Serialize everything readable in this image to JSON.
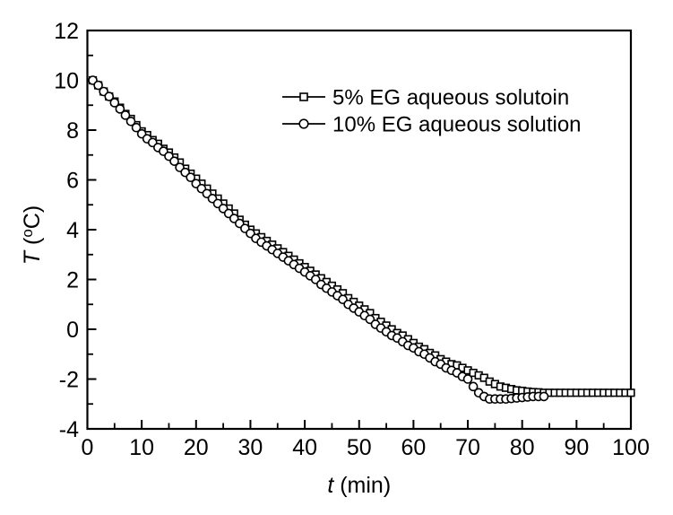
{
  "chart_data": {
    "type": "line",
    "xlabel": {
      "italic": "t",
      "rest": " (min)"
    },
    "ylabel": {
      "italic": "T",
      "pre": " (",
      "sup": "o",
      "post": "C)"
    },
    "xlim": [
      0,
      100
    ],
    "ylim": [
      -4,
      12
    ],
    "x_major_ticks": [
      0,
      10,
      20,
      30,
      40,
      50,
      60,
      70,
      80,
      90,
      100
    ],
    "x_minor_ticks": [
      5,
      15,
      25,
      35,
      45,
      55,
      65,
      75,
      85,
      95
    ],
    "y_major_ticks": [
      -4,
      -2,
      0,
      2,
      4,
      6,
      8,
      10,
      12
    ],
    "y_minor_ticks": [
      -3,
      -1,
      1,
      3,
      5,
      7,
      9,
      11
    ],
    "grid": false,
    "background_color": "#ffffff",
    "line_color": "#000000",
    "marker_fill": "#ffffff",
    "legend": {
      "position": "upper-right-inside",
      "entries": [
        {
          "label": "5% EG aqueous solutoin",
          "marker": "square"
        },
        {
          "label": "10% EG aqueous solution",
          "marker": "circle"
        }
      ]
    },
    "series": [
      {
        "name": "5% EG aqueous solutoin",
        "marker": "square",
        "points": [
          [
            1,
            10
          ],
          [
            2,
            9.8
          ],
          [
            3,
            9.55
          ],
          [
            4,
            9.35
          ],
          [
            5,
            9.15
          ],
          [
            6,
            8.9
          ],
          [
            7,
            8.65
          ],
          [
            8,
            8.45
          ],
          [
            9,
            8.2
          ],
          [
            10,
            7.95
          ],
          [
            11,
            7.8
          ],
          [
            12,
            7.6
          ],
          [
            13,
            7.45
          ],
          [
            14,
            7.25
          ],
          [
            15,
            7.1
          ],
          [
            16,
            6.9
          ],
          [
            17,
            6.7
          ],
          [
            18,
            6.45
          ],
          [
            19,
            6.25
          ],
          [
            20,
            6.05
          ],
          [
            21,
            5.85
          ],
          [
            22,
            5.65
          ],
          [
            23,
            5.45
          ],
          [
            24,
            5.25
          ],
          [
            25,
            5.05
          ],
          [
            26,
            4.85
          ],
          [
            27,
            4.65
          ],
          [
            28,
            4.4
          ],
          [
            29,
            4.2
          ],
          [
            30,
            4
          ],
          [
            31,
            3.85
          ],
          [
            32,
            3.7
          ],
          [
            33,
            3.55
          ],
          [
            34,
            3.4
          ],
          [
            35,
            3.25
          ],
          [
            36,
            3.1
          ],
          [
            37,
            2.95
          ],
          [
            38,
            2.8
          ],
          [
            39,
            2.65
          ],
          [
            40,
            2.5
          ],
          [
            41,
            2.35
          ],
          [
            42,
            2.2
          ],
          [
            43,
            2.05
          ],
          [
            44,
            1.9
          ],
          [
            45,
            1.75
          ],
          [
            46,
            1.6
          ],
          [
            47,
            1.45
          ],
          [
            48,
            1.25
          ],
          [
            49,
            1.1
          ],
          [
            50,
            0.95
          ],
          [
            51,
            0.8
          ],
          [
            52,
            0.65
          ],
          [
            53,
            0.45
          ],
          [
            54,
            0.3
          ],
          [
            55,
            0.15
          ],
          [
            56,
            0
          ],
          [
            57,
            -0.15
          ],
          [
            58,
            -0.25
          ],
          [
            59,
            -0.4
          ],
          [
            60,
            -0.55
          ],
          [
            61,
            -0.7
          ],
          [
            62,
            -0.8
          ],
          [
            63,
            -0.95
          ],
          [
            64,
            -1.05
          ],
          [
            65,
            -1.2
          ],
          [
            66,
            -1.3
          ],
          [
            67,
            -1.4
          ],
          [
            68,
            -1.45
          ],
          [
            69,
            -1.55
          ],
          [
            70,
            -1.65
          ],
          [
            71,
            -1.75
          ],
          [
            72,
            -1.85
          ],
          [
            73,
            -1.95
          ],
          [
            74,
            -2.1
          ],
          [
            75,
            -2.2
          ],
          [
            76,
            -2.3
          ],
          [
            77,
            -2.35
          ],
          [
            78,
            -2.4
          ],
          [
            79,
            -2.45
          ],
          [
            80,
            -2.47
          ],
          [
            81,
            -2.5
          ],
          [
            82,
            -2.52
          ],
          [
            83,
            -2.53
          ],
          [
            84,
            -2.55
          ],
          [
            85,
            -2.55
          ],
          [
            86,
            -2.55
          ],
          [
            87,
            -2.55
          ],
          [
            88,
            -2.55
          ],
          [
            89,
            -2.55
          ],
          [
            90,
            -2.55
          ],
          [
            91,
            -2.55
          ],
          [
            92,
            -2.55
          ],
          [
            93,
            -2.55
          ],
          [
            94,
            -2.55
          ],
          [
            95,
            -2.55
          ],
          [
            96,
            -2.55
          ],
          [
            97,
            -2.55
          ],
          [
            98,
            -2.55
          ],
          [
            99,
            -2.55
          ],
          [
            100,
            -2.55
          ]
        ]
      },
      {
        "name": "10% EG aqueous solution",
        "marker": "circle",
        "points": [
          [
            1,
            10
          ],
          [
            2,
            9.8
          ],
          [
            3,
            9.55
          ],
          [
            4,
            9.35
          ],
          [
            5,
            9.1
          ],
          [
            6,
            8.85
          ],
          [
            7,
            8.6
          ],
          [
            8,
            8.35
          ],
          [
            9,
            8.1
          ],
          [
            10,
            7.85
          ],
          [
            11,
            7.65
          ],
          [
            12,
            7.5
          ],
          [
            13,
            7.3
          ],
          [
            14,
            7.15
          ],
          [
            15,
            6.95
          ],
          [
            16,
            6.75
          ],
          [
            17,
            6.5
          ],
          [
            18,
            6.3
          ],
          [
            19,
            6.1
          ],
          [
            20,
            5.85
          ],
          [
            21,
            5.65
          ],
          [
            22,
            5.45
          ],
          [
            23,
            5.25
          ],
          [
            24,
            5.05
          ],
          [
            25,
            4.85
          ],
          [
            26,
            4.65
          ],
          [
            27,
            4.45
          ],
          [
            28,
            4.25
          ],
          [
            29,
            4.05
          ],
          [
            30,
            3.85
          ],
          [
            31,
            3.65
          ],
          [
            32,
            3.5
          ],
          [
            33,
            3.35
          ],
          [
            34,
            3.2
          ],
          [
            35,
            3.05
          ],
          [
            36,
            2.9
          ],
          [
            37,
            2.75
          ],
          [
            38,
            2.6
          ],
          [
            39,
            2.45
          ],
          [
            40,
            2.3
          ],
          [
            41,
            2.15
          ],
          [
            42,
            2
          ],
          [
            43,
            1.8
          ],
          [
            44,
            1.65
          ],
          [
            45,
            1.5
          ],
          [
            46,
            1.35
          ],
          [
            47,
            1.2
          ],
          [
            48,
            1
          ],
          [
            49,
            0.85
          ],
          [
            50,
            0.7
          ],
          [
            51,
            0.55
          ],
          [
            52,
            0.4
          ],
          [
            53,
            0.2
          ],
          [
            54,
            0.05
          ],
          [
            55,
            -0.1
          ],
          [
            56,
            -0.25
          ],
          [
            57,
            -0.35
          ],
          [
            58,
            -0.5
          ],
          [
            59,
            -0.65
          ],
          [
            60,
            -0.75
          ],
          [
            61,
            -0.9
          ],
          [
            62,
            -1
          ],
          [
            63,
            -1.15
          ],
          [
            64,
            -1.3
          ],
          [
            65,
            -1.4
          ],
          [
            66,
            -1.55
          ],
          [
            67,
            -1.65
          ],
          [
            68,
            -1.75
          ],
          [
            69,
            -1.9
          ],
          [
            70,
            -2
          ],
          [
            71,
            -2.3
          ],
          [
            72,
            -2.55
          ],
          [
            73,
            -2.7
          ],
          [
            74,
            -2.8
          ],
          [
            75,
            -2.8
          ],
          [
            76,
            -2.8
          ],
          [
            77,
            -2.8
          ],
          [
            78,
            -2.78
          ],
          [
            79,
            -2.76
          ],
          [
            80,
            -2.74
          ],
          [
            81,
            -2.72
          ],
          [
            82,
            -2.7
          ],
          [
            83,
            -2.7
          ],
          [
            84,
            -2.7
          ]
        ]
      }
    ]
  }
}
